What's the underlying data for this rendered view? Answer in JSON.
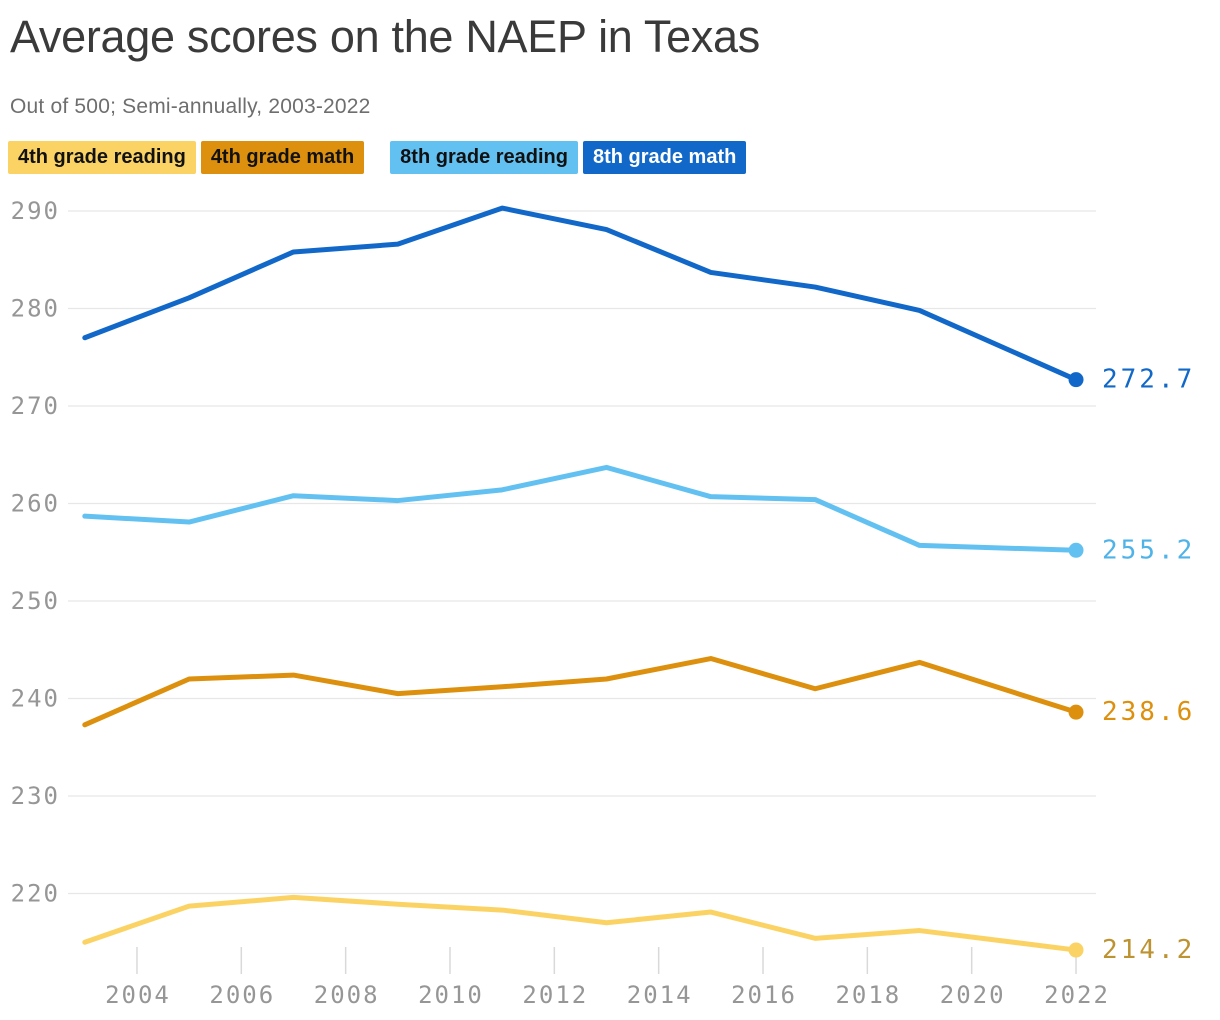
{
  "header": {
    "title": "Average scores on the NAEP in Texas",
    "subtitle": "Out of 500; Semi-annually, 2003-2022"
  },
  "chart_data": {
    "type": "line",
    "title": "Average scores on the NAEP in Texas",
    "subtitle": "Out of 500; Semi-annually, 2003-2022",
    "xlabel": "",
    "ylabel": "",
    "x": [
      2003,
      2005,
      2007,
      2009,
      2011,
      2013,
      2015,
      2017,
      2019,
      2022
    ],
    "x_ticks": [
      2004,
      2006,
      2008,
      2010,
      2012,
      2014,
      2016,
      2018,
      2020,
      2022
    ],
    "y_ticks": [
      220,
      230,
      240,
      250,
      260,
      270,
      280,
      290
    ],
    "ylim": [
      212,
      292
    ],
    "grid": true,
    "legend_position": "top",
    "series": [
      {
        "name": "4th grade reading",
        "color": "#fbd365",
        "end_label": "214.2",
        "end_label_color": "#bd9332",
        "legend_text_color": "#111111",
        "values": [
          215.0,
          218.7,
          219.6,
          218.9,
          218.3,
          217.0,
          218.1,
          215.4,
          216.2,
          214.2
        ]
      },
      {
        "name": "4th grade math",
        "color": "#dd900e",
        "end_label": "238.6",
        "end_label_color": "#dd900e",
        "legend_text_color": "#111111",
        "values": [
          237.3,
          242.0,
          242.4,
          240.5,
          241.2,
          242.0,
          244.1,
          241.0,
          243.7,
          238.6
        ]
      },
      {
        "name": "8th grade reading",
        "color": "#63c1f2",
        "end_label": "255.2",
        "end_label_color": "#4fb3e8",
        "legend_text_color": "#111111",
        "values": [
          258.7,
          258.1,
          260.8,
          260.3,
          261.4,
          263.7,
          260.7,
          260.4,
          255.7,
          255.2
        ]
      },
      {
        "name": "8th grade math",
        "color": "#1268c8",
        "end_label": "272.7",
        "end_label_color": "#1268c8",
        "legend_text_color": "#ffffff",
        "values": [
          277.0,
          281.1,
          285.8,
          286.6,
          290.3,
          288.1,
          283.7,
          282.2,
          279.8,
          272.7
        ]
      }
    ],
    "colors": {
      "grid": "#e7e7e7",
      "tick": "#d9d9d9",
      "axis_text": "#969696"
    }
  }
}
